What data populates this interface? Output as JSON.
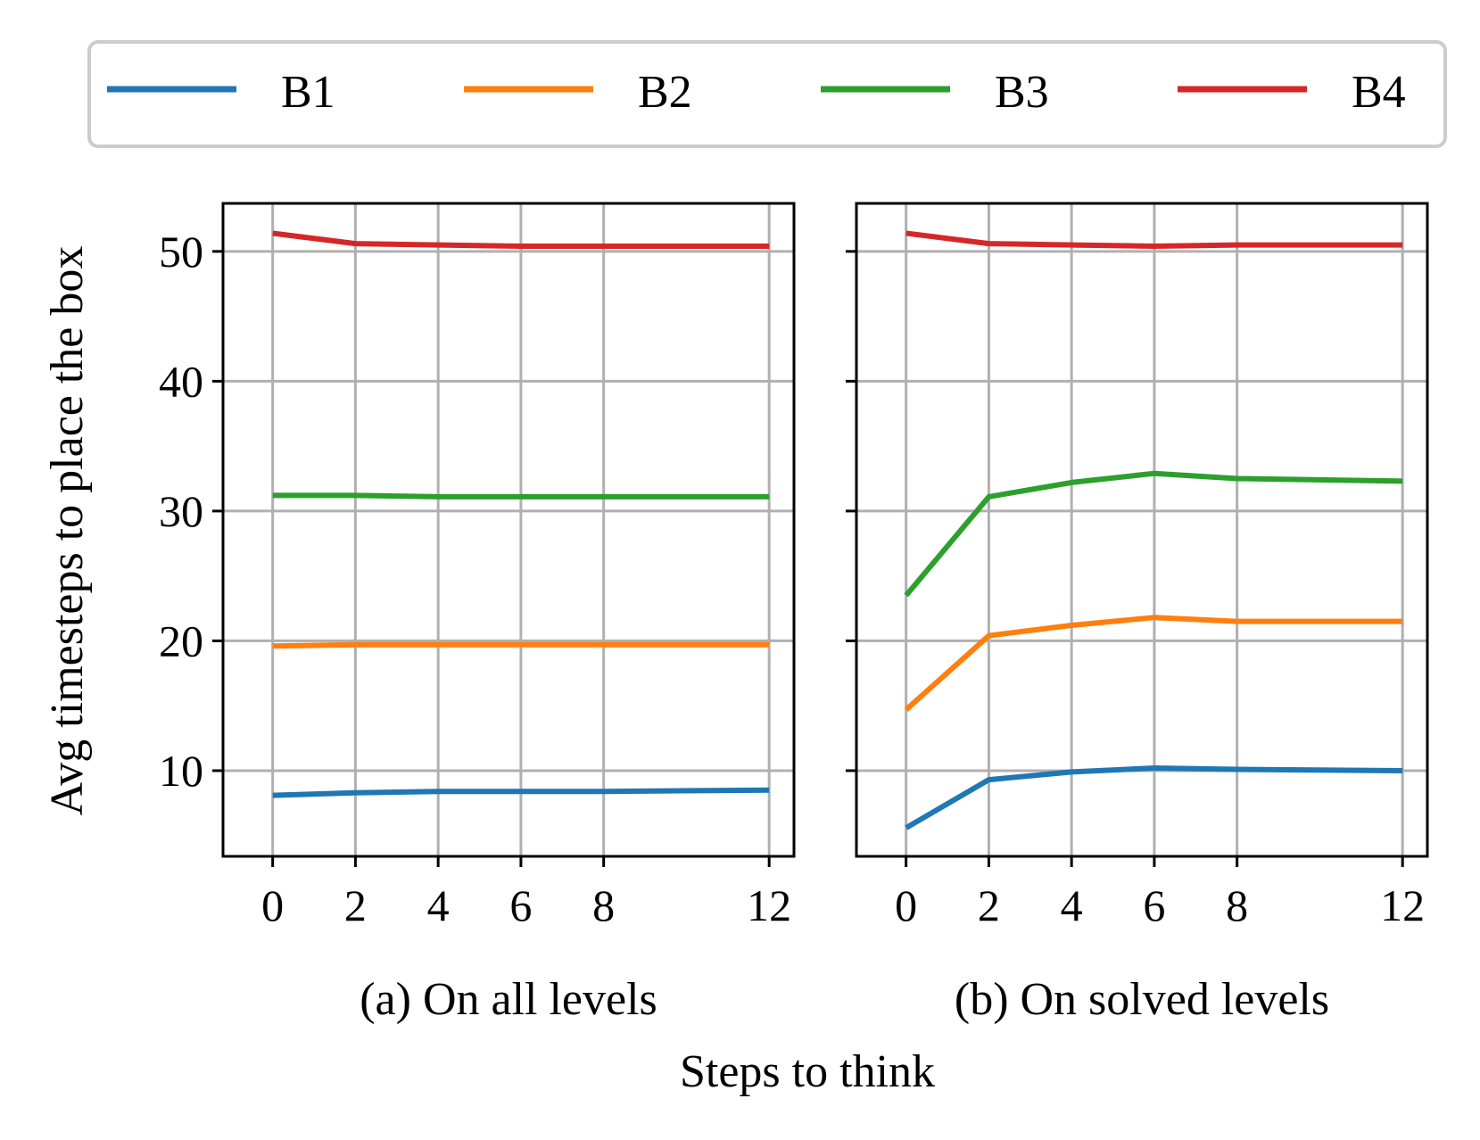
{
  "chart_data": {
    "type": "line",
    "ylabel": "Avg timesteps to place the box",
    "xlabel": "Steps to think",
    "legend": {
      "placement": "top",
      "entries": [
        {
          "name": "B1",
          "color": "#1f77b4"
        },
        {
          "name": "B2",
          "color": "#ff7f0e"
        },
        {
          "name": "B3",
          "color": "#2ca02c"
        },
        {
          "name": "B4",
          "color": "#d62728"
        }
      ]
    },
    "grid": true,
    "xlim": [
      -1.2,
      12.6
    ],
    "ylim": [
      3.4,
      53.7
    ],
    "x_ticks": [
      "0",
      "2",
      "4",
      "6",
      "8",
      "12"
    ],
    "y_ticks": [
      "10",
      "20",
      "30",
      "40",
      "50"
    ],
    "panels": [
      {
        "caption": "(a) On all levels",
        "x": [
          0,
          2,
          4,
          6,
          8,
          12
        ],
        "series": [
          {
            "name": "B1",
            "color": "#1f77b4",
            "values": [
              8.1,
              8.3,
              8.4,
              8.4,
              8.4,
              8.5
            ]
          },
          {
            "name": "B2",
            "color": "#ff7f0e",
            "values": [
              19.6,
              19.7,
              19.7,
              19.7,
              19.7,
              19.7
            ]
          },
          {
            "name": "B3",
            "color": "#2ca02c",
            "values": [
              31.2,
              31.2,
              31.1,
              31.1,
              31.1,
              31.1
            ]
          },
          {
            "name": "B4",
            "color": "#d62728",
            "values": [
              51.4,
              50.6,
              50.5,
              50.4,
              50.4,
              50.4
            ]
          }
        ]
      },
      {
        "caption": "(b) On solved levels",
        "x": [
          0,
          2,
          4,
          6,
          8,
          12
        ],
        "series": [
          {
            "name": "B1",
            "color": "#1f77b4",
            "values": [
              5.6,
              9.3,
              9.9,
              10.2,
              10.1,
              10.0
            ]
          },
          {
            "name": "B2",
            "color": "#ff7f0e",
            "values": [
              14.7,
              20.4,
              21.2,
              21.8,
              21.5,
              21.5
            ]
          },
          {
            "name": "B3",
            "color": "#2ca02c",
            "values": [
              23.5,
              31.1,
              32.2,
              32.9,
              32.5,
              32.3
            ]
          },
          {
            "name": "B4",
            "color": "#d62728",
            "values": [
              51.4,
              50.6,
              50.5,
              50.4,
              50.5,
              50.5
            ]
          }
        ]
      }
    ]
  }
}
